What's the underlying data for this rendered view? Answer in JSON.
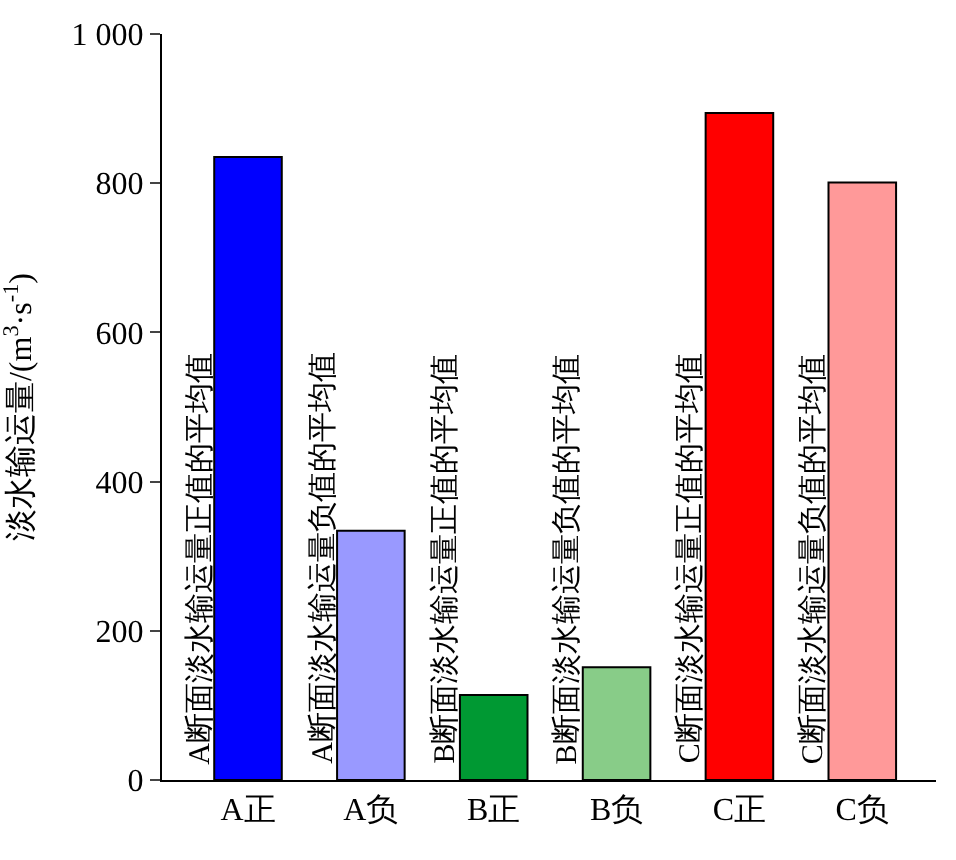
{
  "chart_data": {
    "type": "bar",
    "categories": [
      "A正",
      "A负",
      "B正",
      "B负",
      "C正",
      "C负"
    ],
    "values": [
      835,
      334,
      114,
      151,
      894,
      801
    ],
    "colors": [
      "#0000ff",
      "#9999ff",
      "#009933",
      "#88cc88",
      "#ff0000",
      "#ff9999"
    ],
    "ylabel": "淡水输运量/(m$^{3}$·s$^{-1}$)",
    "ylim": [
      0,
      1000
    ],
    "yticks": [
      0,
      200,
      400,
      600,
      800,
      {
        "value": 1000,
        "label": "1 000"
      }
    ],
    "annotations": [
      "A断面淡水输运量正值的平均值",
      "A断面淡水输运量负值的平均值",
      "B断面淡水输运量正值的平均值",
      "B断面淡水输运量负值的平均值",
      "C断面淡水输运量正值的平均值",
      "C断面淡水输运量负值的平均值"
    ]
  }
}
